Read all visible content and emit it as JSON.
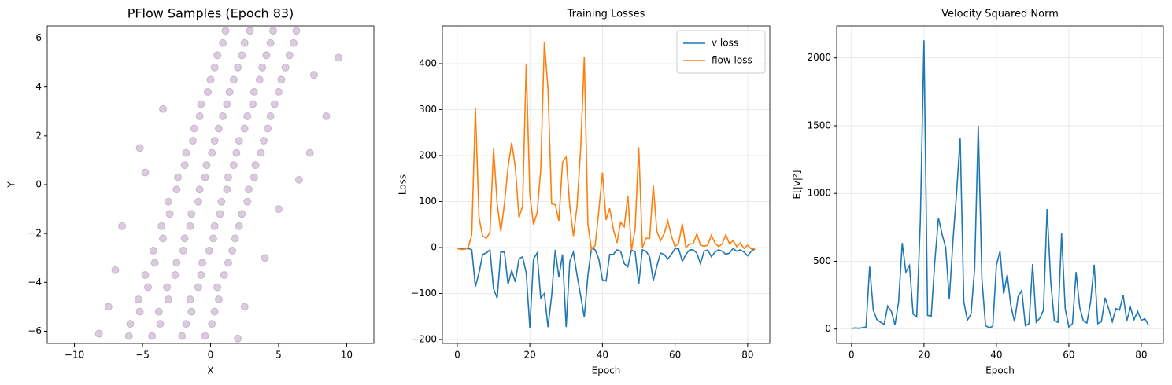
{
  "chart_data": [
    {
      "type": "scatter",
      "title": "PFlow Samples (Epoch 83)",
      "x_label": "X",
      "y_label": "Y",
      "color": "#440154",
      "alpha": 0.2,
      "grid": false,
      "xlim": [
        -12,
        12
      ],
      "ylim": [
        -6.5,
        6.5
      ],
      "xticks": [
        {
          "value": -10,
          "label": "−10"
        },
        {
          "value": -5,
          "label": "−5"
        },
        0,
        5,
        10
      ],
      "yticks": [
        {
          "value": -6,
          "label": "−6"
        },
        {
          "value": -4,
          "label": "−4"
        },
        {
          "value": -2,
          "label": "−2"
        },
        0,
        2,
        4,
        6
      ],
      "x": [
        -6.0,
        -4.3,
        -2.1,
        -0.4,
        -5.9,
        -3.7,
        -1.8,
        0.1,
        -5.2,
        -3.8,
        -1.4,
        0.3,
        -5.3,
        -3.1,
        -1.5,
        0.6,
        -4.6,
        -3.2,
        -0.9,
        0.5,
        -4.8,
        -2.6,
        -0.7,
        1.0,
        -4.1,
        -2.5,
        -0.6,
        1.3,
        -4.2,
        -2.0,
        -0.1,
        1.6,
        -3.5,
        -1.9,
        0.2,
        1.8,
        -3.6,
        -1.5,
        0.3,
        2.1,
        -3.0,
        -1.4,
        0.7,
        2.3,
        -3.1,
        -0.9,
        0.8,
        2.7,
        -2.5,
        -0.8,
        1.2,
        2.8,
        -2.4,
        -0.4,
        1.3,
        3.2,
        -1.9,
        -0.3,
        1.7,
        3.3,
        -1.8,
        0.1,
        1.9,
        3.7,
        -1.3,
        0.3,
        2.1,
        3.9,
        -1.2,
        0.6,
        2.5,
        4.2,
        -0.8,
        0.9,
        2.7,
        4.4,
        -0.7,
        1.2,
        3.1,
        4.7,
        -0.2,
        1.4,
        3.2,
        5.0,
        0.0,
        1.7,
        3.6,
        5.2,
        0.3,
        2.0,
        3.8,
        5.5,
        0.5,
        2.3,
        4.1,
        5.8,
        0.9,
        2.5,
        4.4,
        6.1,
        1.1,
        2.9,
        4.6,
        6.3,
        -8.2,
        -7.0,
        -6.5,
        -5.2,
        -3.5,
        -4.8,
        7.3,
        8.5,
        9.4,
        7.6,
        5.0,
        4.0,
        2.5,
        2.0,
        -7.5,
        6.5
      ],
      "values": [
        -6.2,
        -6.2,
        -6.2,
        -6.2,
        -5.7,
        -5.7,
        -5.7,
        -5.7,
        -5.2,
        -5.2,
        -5.2,
        -5.2,
        -4.7,
        -4.7,
        -4.7,
        -4.7,
        -4.2,
        -4.2,
        -4.2,
        -4.2,
        -3.7,
        -3.7,
        -3.7,
        -3.7,
        -3.2,
        -3.2,
        -3.2,
        -3.2,
        -2.7,
        -2.7,
        -2.7,
        -2.7,
        -2.2,
        -2.2,
        -2.2,
        -2.2,
        -1.7,
        -1.7,
        -1.7,
        -1.7,
        -1.2,
        -1.2,
        -1.2,
        -1.2,
        -0.7,
        -0.7,
        -0.7,
        -0.7,
        -0.2,
        -0.2,
        -0.2,
        -0.2,
        0.3,
        0.3,
        0.3,
        0.3,
        0.8,
        0.8,
        0.8,
        0.8,
        1.3,
        1.3,
        1.3,
        1.3,
        1.8,
        1.8,
        1.8,
        1.8,
        2.3,
        2.3,
        2.3,
        2.3,
        2.8,
        2.8,
        2.8,
        2.8,
        3.3,
        3.3,
        3.3,
        3.3,
        3.8,
        3.8,
        3.8,
        3.8,
        4.3,
        4.3,
        4.3,
        4.3,
        4.8,
        4.8,
        4.8,
        4.8,
        5.3,
        5.3,
        5.3,
        5.3,
        5.8,
        5.8,
        5.8,
        5.8,
        6.3,
        6.3,
        6.3,
        6.3,
        -6.1,
        -3.5,
        -1.7,
        1.5,
        3.1,
        0.5,
        1.3,
        2.8,
        5.2,
        4.5,
        -1.0,
        -3.0,
        -5.0,
        -6.3,
        -5.0,
        0.2
      ]
    },
    {
      "type": "line",
      "title": "Training Losses",
      "x_label": "Epoch",
      "y_label": "Loss",
      "grid": true,
      "legend": "upper right",
      "xlim": [
        -4.1,
        86.1
      ],
      "ylim": [
        -208.5,
        482
      ],
      "xticks": [
        0,
        20,
        40,
        60,
        80
      ],
      "yticks": [
        {
          "value": -200,
          "label": "−200"
        },
        {
          "value": -100,
          "label": "−100"
        },
        0,
        100,
        200,
        300,
        400
      ],
      "x": [
        0,
        1,
        2,
        3,
        4,
        5,
        6,
        7,
        8,
        9,
        10,
        11,
        12,
        13,
        14,
        15,
        16,
        17,
        18,
        19,
        20,
        21,
        22,
        23,
        24,
        25,
        26,
        27,
        28,
        29,
        30,
        31,
        32,
        33,
        34,
        35,
        36,
        37,
        38,
        39,
        40,
        41,
        42,
        43,
        44,
        45,
        46,
        47,
        48,
        49,
        50,
        51,
        52,
        53,
        54,
        55,
        56,
        57,
        58,
        59,
        60,
        61,
        62,
        63,
        64,
        65,
        66,
        67,
        68,
        69,
        70,
        71,
        72,
        73,
        74,
        75,
        76,
        77,
        78,
        79,
        80,
        81,
        82
      ],
      "series": [
        {
          "name": "v loss",
          "color": "#1f77b4",
          "values": [
            -2,
            -3,
            -3,
            -2,
            -5,
            -85,
            -55,
            -15,
            -12,
            -5,
            -90,
            -110,
            -10,
            -10,
            -80,
            -50,
            -75,
            -25,
            -20,
            -55,
            -175,
            -25,
            -12,
            -110,
            -100,
            -173,
            -105,
            -5,
            -65,
            -15,
            -173,
            -30,
            -10,
            -60,
            -105,
            -152,
            -60,
            0,
            -5,
            -25,
            -70,
            -73,
            -15,
            -15,
            -5,
            -8,
            -35,
            -42,
            -5,
            -10,
            -80,
            -5,
            -8,
            -20,
            -72,
            -40,
            -12,
            -15,
            -25,
            -15,
            -2,
            -3,
            -30,
            -15,
            -5,
            -5,
            -12,
            -35,
            -8,
            -5,
            -20,
            -10,
            -5,
            -8,
            -15,
            -12,
            -2,
            -8,
            -5,
            -10,
            -18,
            -8,
            -3
          ]
        },
        {
          "name": "flow loss",
          "color": "#ff7f0e",
          "values": [
            -2,
            -4,
            -4,
            0,
            28,
            303,
            65,
            25,
            20,
            33,
            215,
            95,
            35,
            95,
            175,
            228,
            175,
            65,
            90,
            398,
            115,
            50,
            75,
            170,
            448,
            345,
            95,
            93,
            58,
            185,
            197,
            90,
            25,
            90,
            215,
            415,
            50,
            -5,
            5,
            80,
            163,
            60,
            85,
            40,
            10,
            55,
            45,
            113,
            -5,
            40,
            218,
            0,
            20,
            20,
            135,
            35,
            15,
            30,
            58,
            25,
            2,
            10,
            52,
            0,
            8,
            8,
            30,
            5,
            3,
            5,
            27,
            10,
            2,
            8,
            28,
            8,
            15,
            2,
            10,
            -2,
            5,
            -3,
            -3
          ]
        }
      ]
    },
    {
      "type": "line",
      "title": "Velocity Squared Norm",
      "x_label": "Epoch",
      "y_label": "E[|v|²]",
      "grid": true,
      "xlim": [
        -4.1,
        86.1
      ],
      "ylim": [
        -106,
        2236
      ],
      "xticks": [
        0,
        20,
        40,
        60,
        80
      ],
      "yticks": [
        0,
        500,
        1000,
        1500,
        2000
      ],
      "x": [
        0,
        1,
        2,
        3,
        4,
        5,
        6,
        7,
        8,
        9,
        10,
        11,
        12,
        13,
        14,
        15,
        16,
        17,
        18,
        19,
        20,
        21,
        22,
        23,
        24,
        25,
        26,
        27,
        28,
        29,
        30,
        31,
        32,
        33,
        34,
        35,
        36,
        37,
        38,
        39,
        40,
        41,
        42,
        43,
        44,
        45,
        46,
        47,
        48,
        49,
        50,
        51,
        52,
        53,
        54,
        55,
        56,
        57,
        58,
        59,
        60,
        61,
        62,
        63,
        64,
        65,
        66,
        67,
        68,
        69,
        70,
        71,
        72,
        73,
        74,
        75,
        76,
        77,
        78,
        79,
        80,
        81,
        82
      ],
      "series": [
        {
          "color": "#1f77b4",
          "values": [
            5,
            8,
            6,
            10,
            15,
            460,
            140,
            70,
            50,
            35,
            170,
            130,
            30,
            200,
            635,
            420,
            470,
            110,
            90,
            800,
            2130,
            100,
            95,
            500,
            820,
            700,
            600,
            220,
            650,
            1000,
            1410,
            200,
            65,
            110,
            450,
            1500,
            370,
            25,
            10,
            20,
            470,
            575,
            260,
            400,
            170,
            55,
            240,
            285,
            25,
            40,
            480,
            50,
            80,
            140,
            885,
            350,
            60,
            50,
            705,
            150,
            15,
            40,
            420,
            160,
            60,
            45,
            200,
            475,
            40,
            55,
            230,
            150,
            55,
            150,
            140,
            250,
            60,
            160,
            70,
            130,
            65,
            75,
            30
          ]
        }
      ]
    }
  ]
}
